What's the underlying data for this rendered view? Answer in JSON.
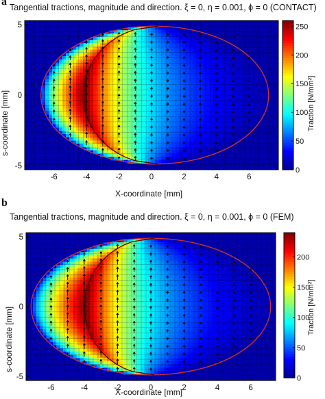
{
  "panels": [
    {
      "letter": "a",
      "title": "Tangential tractions, magnitude and direction. ξ = 0, η = 0.001, ϕ = 0 (CONTACT)",
      "xlabel": "X-coordinate [mm]",
      "ylabel": "s-coordinate [mm]",
      "colorbar_label": "Traction [N/mm²]"
    },
    {
      "letter": "b",
      "title": "Tangential tractions, magnitude and direction. ξ = 0, η = 0.001, ϕ = 0 (FEM)",
      "xlabel": "X-coordinate [mm]",
      "ylabel": "s-coordinate [mm]",
      "colorbar_label": "Traction [N/mm²]"
    }
  ],
  "colors": {
    "colormap": [
      "#00008f",
      "#0000ff",
      "#0080ff",
      "#00ffff",
      "#80ff80",
      "#ffff00",
      "#ff8000",
      "#ff0000",
      "#800000"
    ],
    "contact_edge": "#c83232",
    "slip_boundary": "#5a0000",
    "grid": "#000000",
    "arrows": "#000000"
  },
  "chart_data": [
    {
      "type": "heatmap",
      "panel": "a",
      "title": "Tangential tractions, magnitude and direction. ξ = 0, η = 0.001, ϕ = 0 (CONTACT)",
      "xlabel": "X-coordinate [mm]",
      "ylabel": "s-coordinate [mm]",
      "xlim": [
        -7.8,
        7.8
      ],
      "ylim": [
        -5.3,
        5.3
      ],
      "xticks": [
        -6,
        -4,
        -2,
        0,
        2,
        4,
        6
      ],
      "yticks": [
        -5,
        0,
        5
      ],
      "colorbar": {
        "label": "Traction [N/mm²]",
        "range": [
          0,
          260
        ],
        "ticks": [
          0,
          50,
          100,
          150,
          200,
          250
        ]
      },
      "contact_ellipse": {
        "center_x": 0.2,
        "semi_axis_x": 7.0,
        "semi_axis_s": 4.9
      },
      "slip_front_x_at_s0": -4.2,
      "peak_traction": 255,
      "peak_location": {
        "x": -5.0,
        "s": 0
      },
      "arrow_columns_x": [
        -6,
        -5,
        -4,
        -3,
        -2,
        -1,
        0,
        1,
        2,
        3,
        4,
        5,
        6
      ],
      "arrow_direction": "+s"
    },
    {
      "type": "heatmap",
      "panel": "b",
      "title": "Tangential tractions, magnitude and direction. ξ = 0, η = 0.001, ϕ = 0 (FEM)",
      "xlabel": "X-coordinate [mm]",
      "ylabel": "s-coordinate [mm]",
      "xlim": [
        -7.5,
        7.5
      ],
      "ylim": [
        -5.3,
        5.3
      ],
      "xticks": [
        -6,
        -4,
        -2,
        0,
        2,
        4,
        6
      ],
      "yticks": [
        -5,
        0,
        5
      ],
      "colorbar": {
        "label": "Traction [N/mm²]",
        "range": [
          0,
          240
        ],
        "ticks": [
          0,
          50,
          100,
          150,
          200
        ]
      },
      "contact_ellipse": {
        "center_x": 0.0,
        "semi_axis_x": 7.2,
        "semi_axis_s": 4.9
      },
      "slip_front_x_at_s0": -4.0,
      "peak_traction": 235,
      "peak_location": {
        "x": -5.0,
        "s": 0
      },
      "arrow_columns_x": [
        -6,
        -5,
        -4,
        -3,
        -2,
        -1,
        0,
        1,
        2,
        3,
        4,
        5,
        6
      ],
      "arrow_direction": "+s"
    }
  ]
}
